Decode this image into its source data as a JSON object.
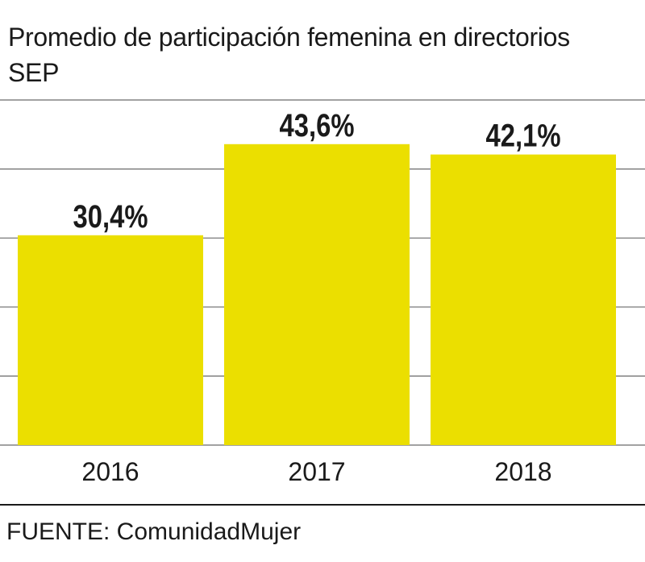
{
  "chart_data": {
    "type": "bar",
    "title": "Promedio de participación femenina en directorios SEP",
    "categories": [
      "2016",
      "2017",
      "2018"
    ],
    "values": [
      30.4,
      43.6,
      42.1
    ],
    "value_labels": [
      "30,4%",
      "43,6%",
      "42,1%"
    ],
    "ylim": [
      0,
      50
    ],
    "grid": true,
    "legend": "none",
    "bar_color": "#ebdf00",
    "grid_color": "#6a6a6a"
  },
  "source": "FUENTE: ComunidadMujer"
}
